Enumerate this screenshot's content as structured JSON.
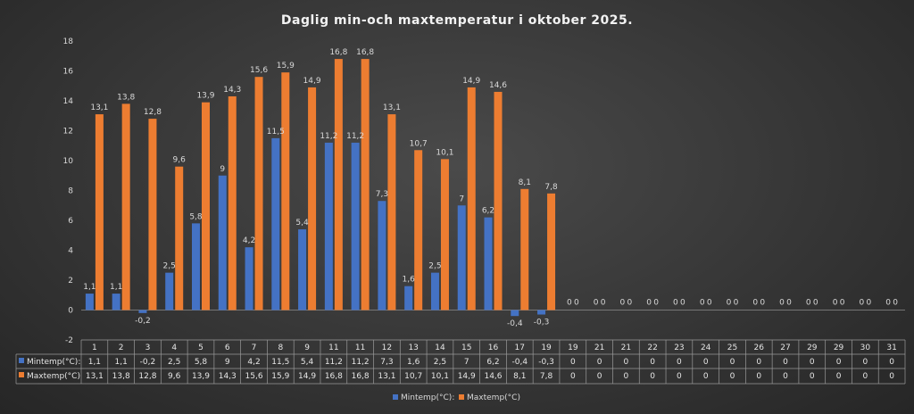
{
  "chart_data": {
    "type": "bar",
    "title": "Daglig min-och maxtemperatur i oktober 2025.",
    "categories": [
      "1",
      "2",
      "3",
      "4",
      "5",
      "6",
      "7",
      "8",
      "9",
      "11",
      "11",
      "12",
      "13",
      "14",
      "15",
      "16",
      "17",
      "19",
      "19",
      "21",
      "21",
      "22",
      "23",
      "24",
      "25",
      "26",
      "27",
      "29",
      "29",
      "30",
      "31"
    ],
    "series": [
      {
        "name": "Mintemp(°C):",
        "legend": "Mintemp(°C):",
        "color": "#4472c4",
        "values": [
          1.1,
          1.1,
          -0.2,
          2.5,
          5.8,
          9,
          4.2,
          11.5,
          5.4,
          11.2,
          11.2,
          7.3,
          1.6,
          2.5,
          7,
          6.2,
          -0.4,
          -0.3,
          0,
          0,
          0,
          0,
          0,
          0,
          0,
          0,
          0,
          0,
          0,
          0,
          0
        ],
        "labels": [
          "1,1",
          "1,1",
          "-0,2",
          "2,5",
          "5,8",
          "9",
          "4,2",
          "11,5",
          "5,4",
          "11,2",
          "11,2",
          "7,3",
          "1,6",
          "2,5",
          "7",
          "6,2",
          "-0,4",
          "-0,3",
          "0",
          "0",
          "0",
          "0",
          "0",
          "0",
          "0",
          "0",
          "0",
          "0",
          "0",
          "0",
          "0"
        ]
      },
      {
        "name": "Maxtemp(°C)",
        "legend": "Maxtemp(°C)",
        "color": "#ed7d31",
        "values": [
          13.1,
          13.8,
          12.8,
          9.6,
          13.9,
          14.3,
          15.6,
          15.9,
          14.9,
          16.8,
          16.8,
          13.1,
          10.7,
          10.1,
          14.9,
          14.6,
          8.1,
          7.8,
          0,
          0,
          0,
          0,
          0,
          0,
          0,
          0,
          0,
          0,
          0,
          0,
          0
        ],
        "labels": [
          "13,1",
          "13,8",
          "12,8",
          "9,6",
          "13,9",
          "14,3",
          "15,6",
          "15,9",
          "14,9",
          "16,8",
          "16,8",
          "13,1",
          "10,7",
          "10,1",
          "14,9",
          "14,6",
          "8,1",
          "7,8",
          "0",
          "0",
          "0",
          "0",
          "0",
          "0",
          "0",
          "0",
          "0",
          "0",
          "0",
          "0",
          "0"
        ]
      }
    ],
    "y_ticks": [
      "-2",
      "0",
      "2",
      "4",
      "6",
      "8",
      "10",
      "12",
      "14",
      "16",
      "18"
    ],
    "ylim": [
      -2,
      18
    ],
    "grid": false,
    "legend_position": "bottom",
    "data_table": true
  }
}
